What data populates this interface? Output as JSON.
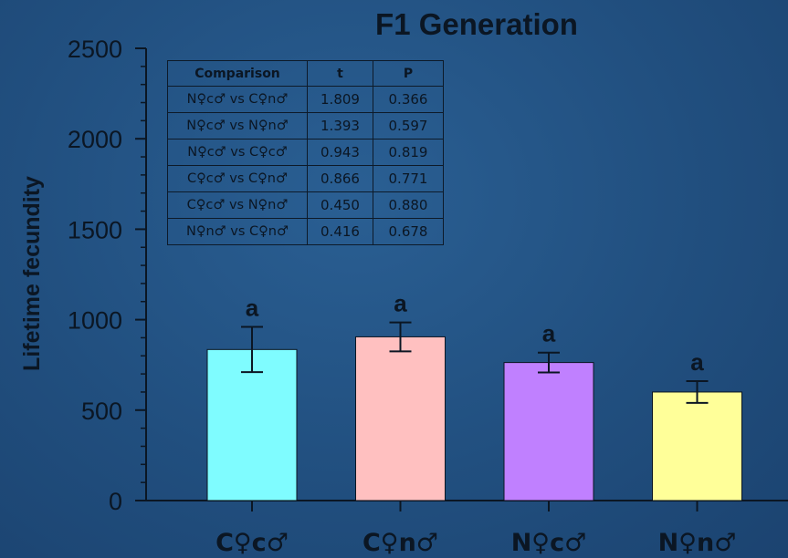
{
  "chart_data": {
    "type": "bar",
    "title": "F1 Generation",
    "xlabel": "",
    "ylabel": "Lifetime fecundity",
    "ylim": [
      0,
      2500
    ],
    "yticks": [
      "0",
      "500",
      "1000",
      "1500",
      "2000",
      "2500"
    ],
    "minor_tick_step": 100,
    "categories": [
      "C♀c♂",
      "C♀n♂",
      "N♀c♂",
      "N♀n♂"
    ],
    "values": [
      835,
      905,
      763,
      600
    ],
    "errors": [
      125,
      80,
      55,
      60
    ],
    "bar_colors": [
      "#7ffcff",
      "#ffc0c0",
      "#c080ff",
      "#ffff99"
    ],
    "bar_labels": [
      "a",
      "a",
      "a",
      "a"
    ],
    "grid": false
  },
  "stats_table": {
    "headers": [
      "Comparison",
      "t",
      "P"
    ],
    "rows": [
      [
        "N♀c♂ vs C♀n♂",
        "1.809",
        "0.366"
      ],
      [
        "N♀c♂ vs N♀n♂",
        "1.393",
        "0.597"
      ],
      [
        "N♀c♂ vs C♀c♂",
        "0.943",
        "0.819"
      ],
      [
        "C♀c♂ vs C♀n♂",
        "0.866",
        "0.771"
      ],
      [
        "C♀c♂ vs N♀n♂",
        "0.450",
        "0.880"
      ],
      [
        "N♀n♂ vs C♀n♂",
        "0.416",
        "0.678"
      ]
    ]
  },
  "colors": {
    "background": "#214f7f",
    "text": "#0b1623",
    "table_fill": "#2b5a8a"
  }
}
